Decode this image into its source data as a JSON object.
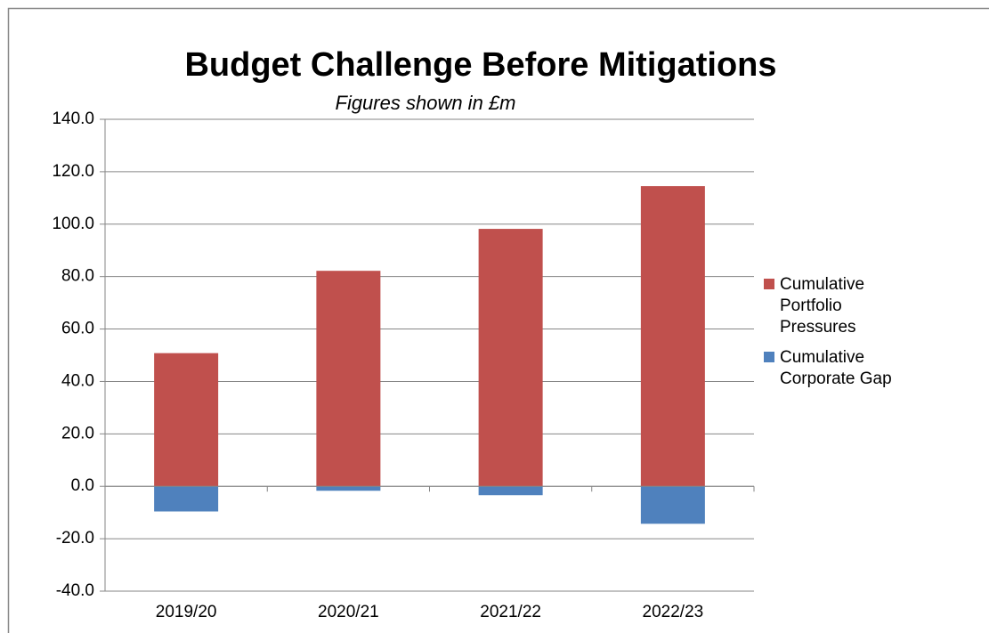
{
  "chart_data": {
    "type": "stacked_bar",
    "title": "Budget Challenge Before Mitigations",
    "subtitle": "Figures shown in £m",
    "categories": [
      "2019/20",
      "2020/21",
      "2021/22",
      "2022/23"
    ],
    "series": [
      {
        "name": "Cumulative Portfolio Pressures",
        "color": "#c0504d",
        "values": [
          50.8,
          82.2,
          98.2,
          114.5
        ]
      },
      {
        "name": "Cumulative Corporate Gap",
        "color": "#4f81bd",
        "values": [
          -9.6,
          -1.7,
          -3.4,
          -14.3
        ]
      }
    ],
    "ylim": [
      -40,
      140
    ],
    "yticks": [
      {
        "value": -40,
        "label": "-40.0"
      },
      {
        "value": -20,
        "label": "-20.0"
      },
      {
        "value": 0,
        "label": "0.0"
      },
      {
        "value": 20,
        "label": "20.0"
      },
      {
        "value": 40,
        "label": "40.0"
      },
      {
        "value": 60,
        "label": "60.0"
      },
      {
        "value": 80,
        "label": "80.0"
      },
      {
        "value": 100,
        "label": "100.0"
      },
      {
        "value": 120,
        "label": "120.0"
      },
      {
        "value": 140,
        "label": "140.0"
      }
    ],
    "grid": true,
    "legend": "right"
  }
}
